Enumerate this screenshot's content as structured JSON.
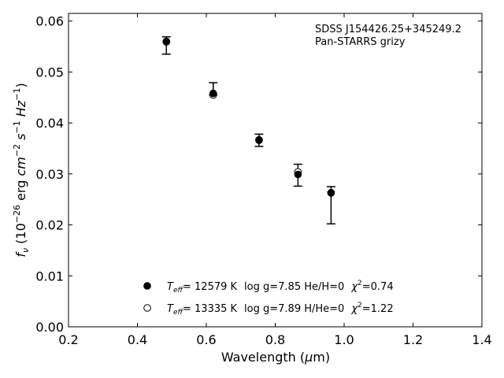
{
  "chart_data": {
    "type": "scatter",
    "xlabel_prefix": "Wavelength (",
    "xlabel_mu": "μ",
    "xlabel_suffix": "m)",
    "ylabel_text": "f_ν (10^-26 erg cm^-2 s^-1 Hz^-1)",
    "xlim": [
      0.2,
      1.4
    ],
    "ylim": [
      0.0,
      0.0615
    ],
    "x_ticks": [
      "0.2",
      "0.4",
      "0.6",
      "0.8",
      "1.0",
      "1.2",
      "1.4"
    ],
    "y_ticks": [
      "0.00",
      "0.01",
      "0.02",
      "0.03",
      "0.04",
      "0.05",
      "0.06"
    ],
    "annotation": [
      "SDSS J154426.25+345249.2",
      "Pan-STARRS grizy"
    ],
    "observed": {
      "x": [
        0.484,
        0.62,
        0.753,
        0.866,
        0.962
      ],
      "y": [
        0.0558,
        0.0458,
        0.0366,
        0.0299,
        0.0263
      ],
      "err_low": [
        0.0535,
        0.0455,
        0.0354,
        0.0276,
        0.0202
      ],
      "err_high": [
        0.0569,
        0.0479,
        0.0378,
        0.0319,
        0.0275
      ]
    },
    "series": [
      {
        "marker": "filled",
        "teff": "= 12579 K",
        "params": "log g=7.85  He/H=0",
        "chi2": "=0.74",
        "x": [
          0.484,
          0.62,
          0.753,
          0.866,
          0.962
        ],
        "y": [
          0.0559,
          0.0458,
          0.0367,
          0.0299,
          0.0263
        ]
      },
      {
        "marker": "open",
        "teff": "= 13335 K",
        "params": "log g=7.89  H/He=0",
        "chi2": "=1.22",
        "x": [
          0.484,
          0.62,
          0.753,
          0.866,
          0.962
        ],
        "y": [
          0.056,
          0.0455,
          0.0366,
          0.0304,
          0.0263
        ]
      }
    ],
    "legend_position": "lower-center",
    "grid": false
  }
}
